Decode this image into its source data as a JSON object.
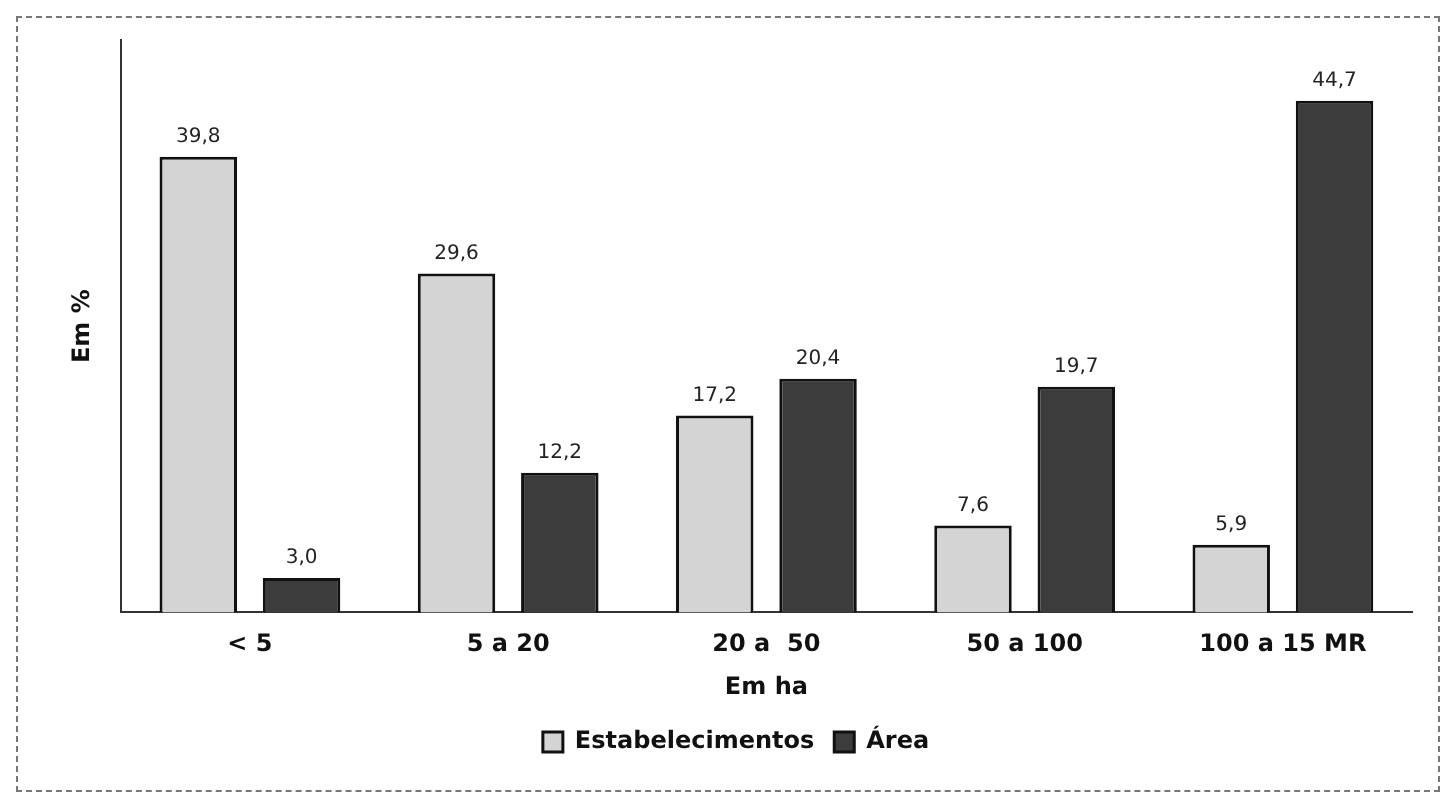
{
  "chart_data": {
    "type": "bar",
    "xlabel": "Em ha",
    "ylabel": "Em %",
    "categories": [
      "< 5",
      "5 a 20",
      "20 a  50",
      "50 a 100",
      "100 a 15 MR"
    ],
    "series": [
      {
        "name": "Estabelecimentos",
        "color": "#d4d4d4",
        "values": [
          39.8,
          29.6,
          17.2,
          7.6,
          5.9
        ],
        "value_labels": [
          "39,8",
          "29,6",
          "17,2",
          "7,6",
          "5,9"
        ]
      },
      {
        "name": "Área",
        "color": "#3c3c3c",
        "values": [
          3.0,
          12.2,
          20.4,
          19.7,
          44.7
        ],
        "value_labels": [
          "3,0",
          "12,2",
          "20,4",
          "19,7",
          "44,7"
        ]
      }
    ],
    "ylim": [
      0,
      50
    ],
    "tick_labels": "x",
    "legend": "bottom",
    "grid": false
  }
}
